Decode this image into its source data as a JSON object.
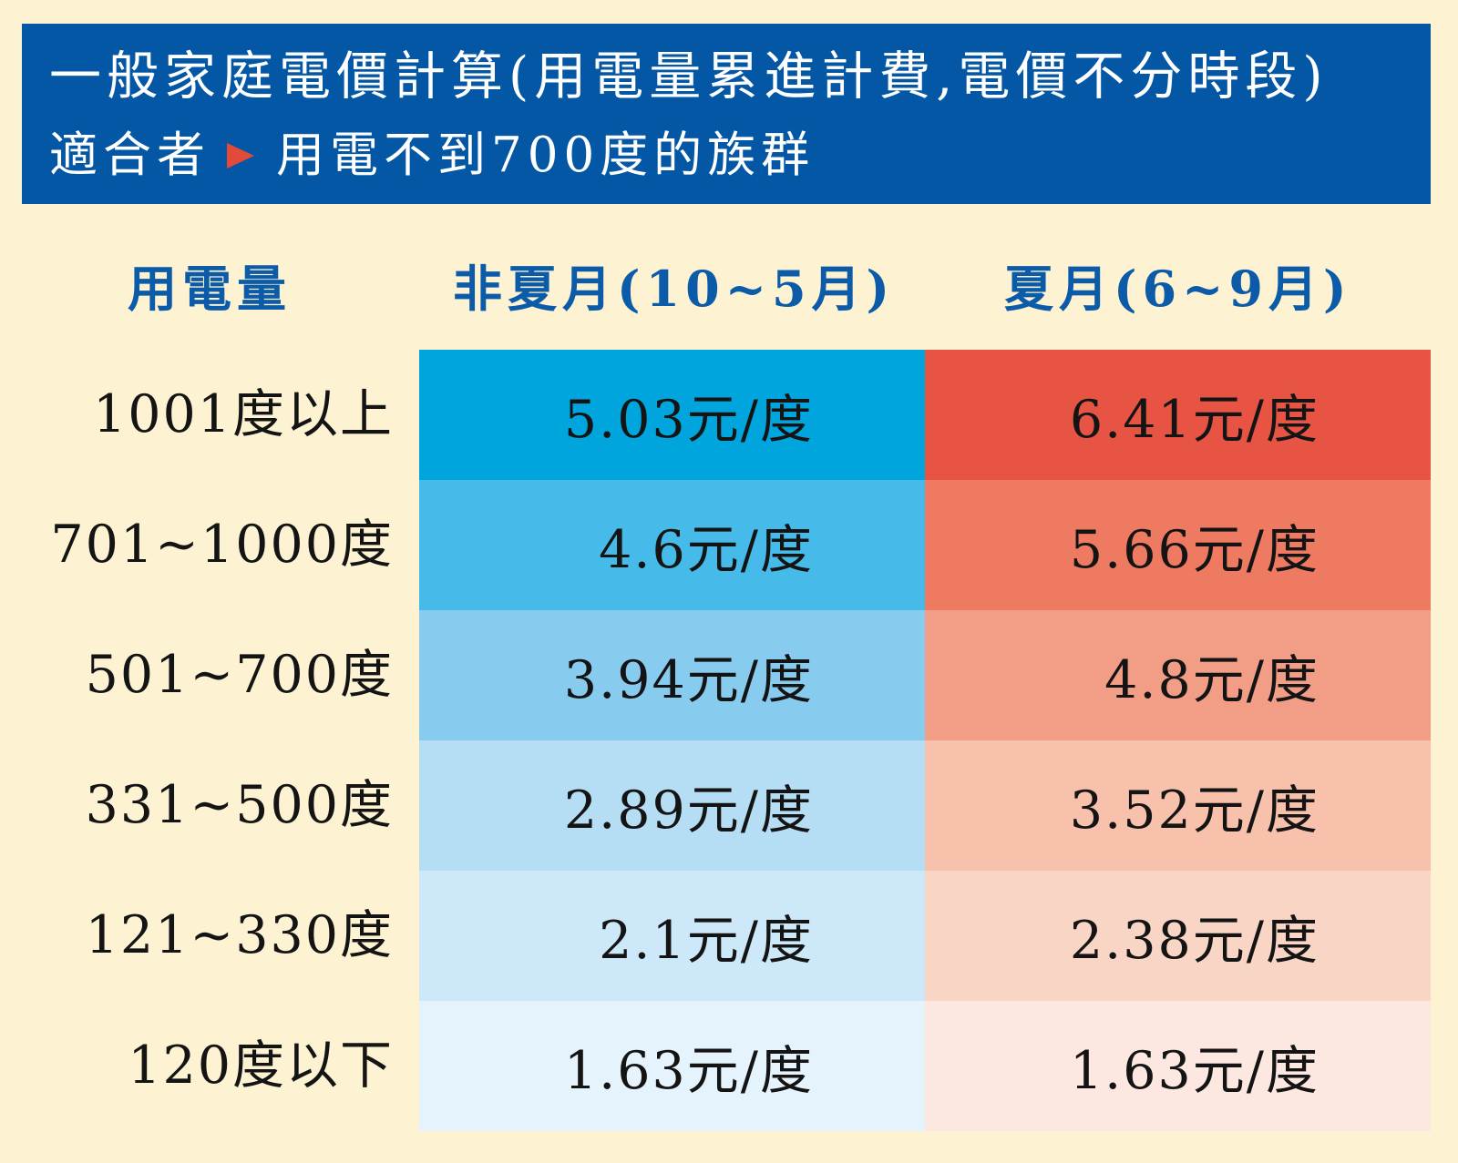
{
  "header": {
    "title": "一般家庭電價計算(用電量累進計費,電價不分時段)",
    "subtitle_prefix": "適合者",
    "subtitle_text": "用電不到700度的族群"
  },
  "table": {
    "headers": [
      "用電量",
      "非夏月(10~5月)",
      "夏月(6~9月)"
    ],
    "rows": [
      {
        "tier": "1001度以上",
        "non_summer": "5.03元/度",
        "summer": "6.41元/度",
        "non_summer_color": "#00a5de",
        "summer_color": "#e85444"
      },
      {
        "tier": "701~1000度",
        "non_summer": "4.6元/度",
        "summer": "5.66元/度",
        "non_summer_color": "#46bae8",
        "summer_color": "#ee7a61"
      },
      {
        "tier": "501~700度",
        "non_summer": "3.94元/度",
        "summer": "4.8元/度",
        "non_summer_color": "#87cbef",
        "summer_color": "#f29d85"
      },
      {
        "tier": "331~500度",
        "non_summer": "2.89元/度",
        "summer": "3.52元/度",
        "non_summer_color": "#b5def5",
        "summer_color": "#f7c1ac"
      },
      {
        "tier": "121~330度",
        "non_summer": "2.1元/度",
        "summer": "2.38元/度",
        "non_summer_color": "#cde9f9",
        "summer_color": "#f9d5c5"
      },
      {
        "tier": "120度以下",
        "non_summer": "1.63元/度",
        "summer": "1.63元/度",
        "non_summer_color": "#e5f4fc",
        "summer_color": "#fce8e0"
      }
    ]
  },
  "colors": {
    "background": "#fdf3d2",
    "header_bg": "#0457a5",
    "header_text": "#ffffff",
    "column_header_text": "#0b5ba8",
    "arrow": "#e34a3a"
  }
}
